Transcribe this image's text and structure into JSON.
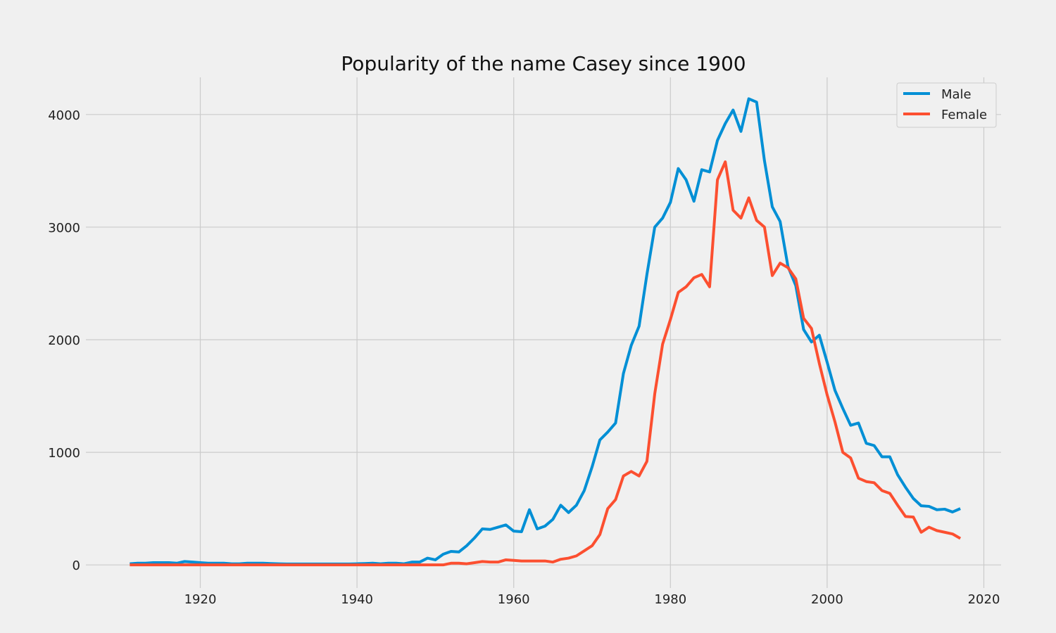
{
  "chart_data": {
    "type": "line",
    "title": "Popularity of the name Casey since 1900",
    "xlabel": "",
    "ylabel": "",
    "xlim": [
      1905.4,
      2022.2
    ],
    "ylim": [
      -205,
      4330
    ],
    "x_ticks": [
      1920,
      1940,
      1960,
      1980,
      2000,
      2020
    ],
    "y_ticks": [
      0,
      1000,
      2000,
      3000,
      4000
    ],
    "grid": true,
    "legend_position": "top-right",
    "x": [
      1911,
      1912,
      1913,
      1914,
      1915,
      1916,
      1917,
      1918,
      1919,
      1920,
      1921,
      1922,
      1923,
      1924,
      1925,
      1926,
      1927,
      1928,
      1929,
      1930,
      1931,
      1932,
      1933,
      1934,
      1935,
      1936,
      1937,
      1938,
      1939,
      1940,
      1941,
      1942,
      1943,
      1944,
      1945,
      1946,
      1947,
      1948,
      1949,
      1950,
      1951,
      1952,
      1953,
      1954,
      1955,
      1956,
      1957,
      1958,
      1959,
      1960,
      1961,
      1962,
      1963,
      1964,
      1965,
      1966,
      1967,
      1968,
      1969,
      1970,
      1971,
      1972,
      1973,
      1974,
      1975,
      1976,
      1977,
      1978,
      1979,
      1980,
      1981,
      1982,
      1983,
      1984,
      1985,
      1986,
      1987,
      1988,
      1989,
      1990,
      1991,
      1992,
      1993,
      1994,
      1995,
      1996,
      1997,
      1998,
      1999,
      2000,
      2001,
      2002,
      2003,
      2004,
      2005,
      2006,
      2007,
      2008,
      2009,
      2010,
      2011,
      2012,
      2013,
      2014,
      2015,
      2016,
      2017
    ],
    "series": [
      {
        "name": "Male",
        "color": "#008fd5",
        "values": [
          10,
          15,
          15,
          20,
          20,
          20,
          15,
          30,
          25,
          20,
          15,
          15,
          15,
          10,
          10,
          15,
          15,
          15,
          12,
          10,
          8,
          8,
          8,
          8,
          8,
          8,
          8,
          8,
          8,
          10,
          12,
          15,
          10,
          15,
          15,
          10,
          25,
          25,
          60,
          45,
          95,
          120,
          115,
          170,
          240,
          320,
          315,
          335,
          355,
          300,
          295,
          490,
          320,
          345,
          405,
          530,
          465,
          530,
          660,
          870,
          1110,
          1180,
          1260,
          1700,
          1950,
          2120,
          2580,
          3000,
          3080,
          3220,
          3520,
          3420,
          3230,
          3510,
          3490,
          3770,
          3920,
          4040,
          3850,
          4140,
          4110,
          3590,
          3180,
          3050,
          2650,
          2480,
          2090,
          1980,
          2040,
          1800,
          1550,
          1390,
          1240,
          1260,
          1080,
          1060,
          960,
          960,
          800,
          690,
          590,
          525,
          520,
          490,
          495,
          470,
          500
        ]
      },
      {
        "name": "Female",
        "color": "#fc4f30",
        "values": [
          0,
          0,
          0,
          0,
          0,
          0,
          0,
          0,
          0,
          0,
          0,
          0,
          0,
          0,
          0,
          0,
          0,
          0,
          0,
          0,
          0,
          0,
          0,
          0,
          0,
          0,
          0,
          0,
          0,
          0,
          0,
          0,
          0,
          0,
          0,
          0,
          0,
          0,
          0,
          0,
          0,
          15,
          15,
          10,
          20,
          30,
          25,
          25,
          45,
          40,
          35,
          35,
          35,
          35,
          25,
          50,
          60,
          80,
          125,
          170,
          270,
          500,
          580,
          790,
          830,
          790,
          920,
          1520,
          1960,
          2180,
          2420,
          2470,
          2550,
          2580,
          2470,
          3420,
          3580,
          3150,
          3080,
          3260,
          3060,
          3000,
          2570,
          2680,
          2640,
          2540,
          2190,
          2100,
          1790,
          1510,
          1270,
          1000,
          950,
          770,
          740,
          730,
          660,
          635,
          530,
          430,
          425,
          290,
          335,
          305,
          290,
          275,
          235
        ]
      }
    ]
  }
}
